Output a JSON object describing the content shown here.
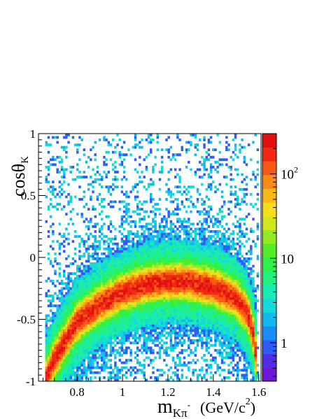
{
  "chart_data": {
    "type": "heatmap",
    "title": "",
    "xlabel": {
      "main": "m",
      "sub": "Kπ",
      "sup": "-",
      "unit_pre": "(GeV/c",
      "unit_sup": "2",
      "unit_post": ")"
    },
    "ylabel": {
      "main": "cosθ",
      "sub": "K"
    },
    "xlim": [
      0.63,
      1.61
    ],
    "ylim": [
      -1,
      1
    ],
    "xticks": [
      {
        "value": 0.8,
        "label": "0.8"
      },
      {
        "value": 1.0,
        "label": "1"
      },
      {
        "value": 1.2,
        "label": "1.2"
      },
      {
        "value": 1.4,
        "label": "1.4"
      },
      {
        "value": 1.6,
        "label": "1.6"
      }
    ],
    "yticks": [
      {
        "value": -1,
        "label": "-1"
      },
      {
        "value": -0.5,
        "label": "-0.5"
      },
      {
        "value": 0,
        "label": "0"
      },
      {
        "value": 0.5,
        "label": "0.5"
      },
      {
        "value": 1,
        "label": "1"
      }
    ],
    "zscale": "log",
    "zlim": [
      0.35,
      300
    ],
    "zticks": [
      {
        "value": 1,
        "label": "1"
      },
      {
        "value": 10,
        "label": "10"
      },
      {
        "value": 100,
        "label_main": "10",
        "label_sup": "2"
      }
    ],
    "colormap": [
      "#6a18d6",
      "#4f2ee8",
      "#2f5cf5",
      "#1a8df7",
      "#12b8f0",
      "#14d9d8",
      "#19ecb1",
      "#22f27d",
      "#2ef04a",
      "#54ec2a",
      "#93ea22",
      "#cfe81e",
      "#f7de1c",
      "#fbb819",
      "#fb8a16",
      "#f85a14",
      "#f02a12",
      "#e01010"
    ],
    "band_curve": [
      {
        "x": 0.66,
        "y": -1.0
      },
      {
        "x": 0.7,
        "y": -0.82
      },
      {
        "x": 0.8,
        "y": -0.52
      },
      {
        "x": 0.9,
        "y": -0.38
      },
      {
        "x": 1.0,
        "y": -0.28
      },
      {
        "x": 1.1,
        "y": -0.22
      },
      {
        "x": 1.2,
        "y": -0.19
      },
      {
        "x": 1.3,
        "y": -0.2
      },
      {
        "x": 1.4,
        "y": -0.24
      },
      {
        "x": 1.5,
        "y": -0.33
      },
      {
        "x": 1.55,
        "y": -0.45
      },
      {
        "x": 1.58,
        "y": -0.65
      },
      {
        "x": 1.595,
        "y": -1.0
      }
    ],
    "band_peak": 200,
    "band_width": 0.06,
    "background_level": 0.8,
    "grid": false,
    "legend": "none"
  }
}
